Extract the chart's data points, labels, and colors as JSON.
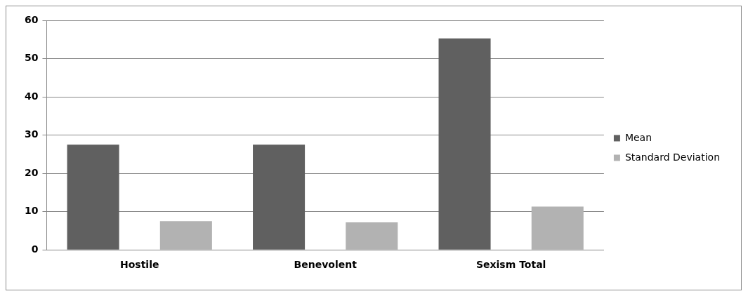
{
  "chart_data": {
    "type": "bar",
    "categories": [
      "Hostile",
      "Benevolent",
      "Sexism Total"
    ],
    "series": [
      {
        "name": "Mean",
        "color": "#606060",
        "values": [
          27.5,
          27.5,
          55.3
        ]
      },
      {
        "name": "Standard Deviation",
        "color": "#b2b2b2",
        "values": [
          7.5,
          7.2,
          11.3
        ]
      }
    ],
    "ylim": [
      0,
      60
    ],
    "yticks": [
      0,
      10,
      20,
      30,
      40,
      50,
      60
    ],
    "grid": "y",
    "legend": "right"
  }
}
